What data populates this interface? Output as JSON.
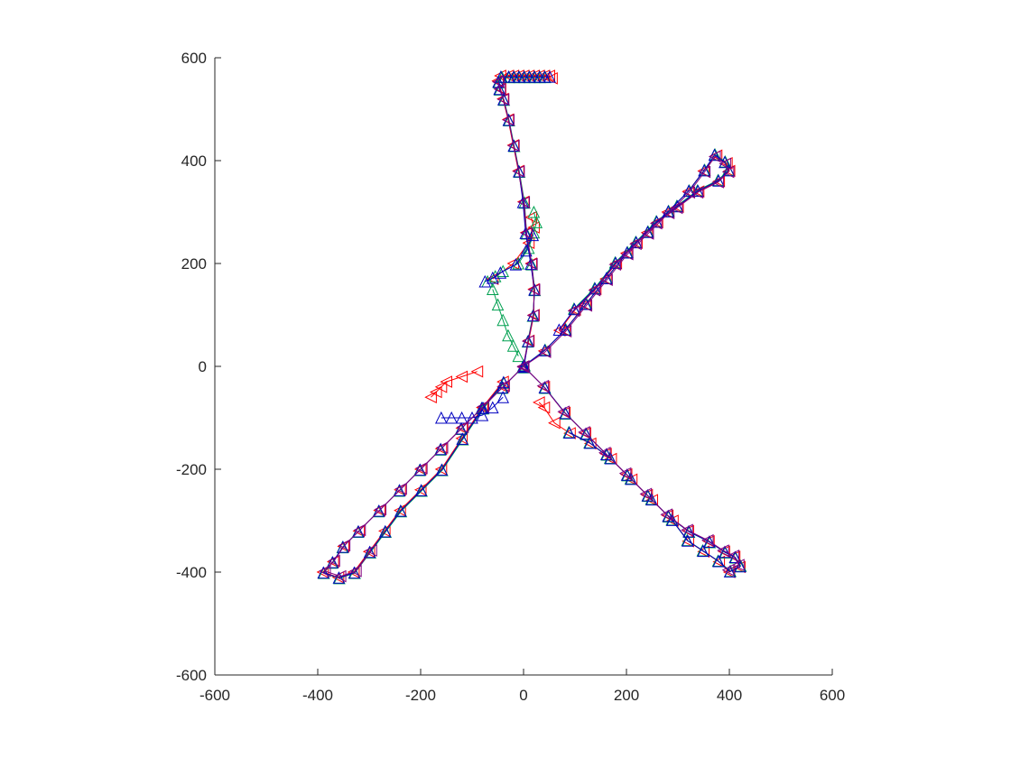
{
  "chart_data": {
    "type": "line",
    "title": "",
    "xlabel": "",
    "ylabel": "",
    "xlim": [
      -600,
      600
    ],
    "ylim": [
      -600,
      600
    ],
    "aspect": "equal",
    "grid": false,
    "box": false,
    "x_ticks": [
      -600,
      -400,
      -200,
      0,
      200,
      400,
      600
    ],
    "y_ticks": [
      -600,
      -400,
      -200,
      0,
      200,
      400,
      600
    ],
    "x_tick_labels": [
      "-600",
      "-400",
      "-200",
      "0",
      "200",
      "400",
      "600"
    ],
    "y_tick_labels": [
      "-600",
      "-400",
      "-200",
      "0",
      "200",
      "400",
      "600"
    ],
    "series": [
      {
        "color": "#ff0000",
        "marker": "triangle-left",
        "segments": [
          {
            "x": [
              0,
              10,
              20,
              20,
              15,
              5,
              0,
              -10,
              -20,
              -30,
              -40,
              -45,
              -50,
              -45,
              -30,
              -20,
              -10,
              0,
              10,
              20,
              30,
              40,
              50,
              55
            ],
            "y": [
              0,
              50,
              100,
              150,
              200,
              260,
              320,
              380,
              430,
              480,
              520,
              540,
              555,
              565,
              565,
              565,
              565,
              565,
              565,
              565,
              565,
              565,
              565,
              560
            ]
          },
          {
            "x": [
              -60,
              -20,
              10,
              20,
              15
            ],
            "y": [
              170,
              200,
              240,
              270,
              290
            ]
          },
          {
            "x": [
              0,
              40,
              80,
              120,
              160,
              200,
              240,
              280,
              320,
              350,
              375,
              395,
              400,
              380,
              340,
              300,
              260,
              220,
              180,
              140,
              100,
              70
            ],
            "y": [
              0,
              30,
              70,
              120,
              170,
              220,
              260,
              300,
              340,
              380,
              410,
              395,
              380,
              360,
              340,
              310,
              280,
              240,
              200,
              150,
              110,
              70
            ]
          },
          {
            "x": [
              0,
              40,
              80,
              120,
              160,
              200,
              240,
              280,
              320,
              360,
              390,
              410,
              420,
              400,
              380,
              350,
              320,
              290,
              250,
              210,
              170,
              130,
              90,
              60,
              40,
              30
            ],
            "y": [
              0,
              -40,
              -90,
              -130,
              -170,
              -210,
              -250,
              -290,
              -320,
              -340,
              -360,
              -370,
              -390,
              -400,
              -380,
              -360,
              -340,
              -300,
              -260,
              -220,
              -180,
              -150,
              -130,
              -110,
              -80,
              -70
            ]
          },
          {
            "x": [
              0,
              -40,
              -80,
              -120,
              -160,
              -200,
              -240,
              -280,
              -320,
              -350,
              -370,
              -390,
              -360,
              -330,
              -300,
              -270,
              -240,
              -200,
              -160,
              -120,
              -80,
              -40
            ],
            "y": [
              0,
              -40,
              -80,
              -120,
              -160,
              -200,
              -240,
              -280,
              -320,
              -350,
              -380,
              -400,
              -410,
              -400,
              -360,
              -320,
              -280,
              -240,
              -200,
              -140,
              -80,
              -30
            ]
          },
          {
            "x": [
              -180,
              -170,
              -160,
              -150,
              -120,
              -90
            ],
            "y": [
              -60,
              -50,
              -40,
              -30,
              -20,
              -10
            ]
          }
        ]
      },
      {
        "color": "#00a050",
        "marker": "triangle-up",
        "segments": [
          {
            "x": [
              0,
              8,
              18,
              22,
              16,
              6,
              2,
              -8,
              -18,
              -28,
              -38,
              -46,
              -48,
              -42,
              -28,
              -18,
              -8,
              2,
              12,
              22,
              32,
              42
            ],
            "y": [
              0,
              48,
              98,
              148,
              198,
              258,
              318,
              378,
              428,
              478,
              518,
              538,
              552,
              562,
              562,
              562,
              562,
              562,
              562,
              562,
              562,
              562
            ]
          },
          {
            "x": [
              -70,
              -55,
              -40,
              -10,
              10,
              20,
              25,
              20
            ],
            "y": [
              165,
              175,
              185,
              200,
              230,
              260,
              280,
              300
            ]
          },
          {
            "x": [
              -60,
              -50,
              -40,
              -30,
              -20,
              -10
            ],
            "y": [
              150,
              120,
              90,
              60,
              40,
              20
            ]
          },
          {
            "x": [
              2,
              42,
              82,
              122,
              162,
              202,
              242,
              282,
              322,
              352,
              372,
              392,
              398,
              378,
              338,
              298,
              258,
              218,
              178,
              138,
              98
            ],
            "y": [
              2,
              32,
              72,
              122,
              172,
              222,
              262,
              302,
              342,
              382,
              412,
              398,
              382,
              362,
              342,
              312,
              282,
              242,
              202,
              152,
              112
            ]
          },
          {
            "x": [
              2,
              42,
              82,
              122,
              162,
              202,
              242,
              282,
              322,
              362,
              392,
              412,
              422,
              402,
              378,
              348,
              318,
              288,
              248,
              208,
              168,
              128,
              88
            ],
            "y": [
              -2,
              -42,
              -92,
              -132,
              -172,
              -212,
              -252,
              -292,
              -322,
              -342,
              -362,
              -372,
              -388,
              -398,
              -378,
              -358,
              -338,
              -298,
              -258,
              -218,
              -178,
              -148,
              -128
            ]
          },
          {
            "x": [
              -2,
              -42,
              -82,
              -122,
              -162,
              -202,
              -242,
              -282,
              -322,
              -352,
              -372,
              -388,
              -358,
              -328,
              -298,
              -268,
              -238,
              -198,
              -158,
              -118,
              -78,
              -38
            ],
            "y": [
              -2,
              -42,
              -82,
              -122,
              -162,
              -202,
              -242,
              -282,
              -322,
              -352,
              -382,
              -402,
              -412,
              -402,
              -362,
              -322,
              -282,
              -242,
              -202,
              -142,
              -82,
              -32
            ]
          }
        ]
      },
      {
        "color": "#0000c0",
        "marker": "triangle-up",
        "segments": [
          {
            "x": [
              1,
              9,
              19,
              21,
              14,
              4,
              -1,
              -9,
              -19,
              -29,
              -39,
              -47,
              -49,
              -44,
              -29,
              -19,
              -9,
              1,
              11,
              21,
              31,
              41,
              51
            ],
            "y": [
              1,
              49,
              99,
              149,
              199,
              259,
              319,
              379,
              429,
              479,
              519,
              539,
              553,
              563,
              563,
              563,
              563,
              563,
              563,
              563,
              563,
              563,
              563
            ]
          },
          {
            "x": [
              -75,
              -60,
              -45,
              -15,
              5,
              18
            ],
            "y": [
              165,
              172,
              182,
              198,
              225,
              255
            ]
          },
          {
            "x": [
              1,
              41,
              81,
              121,
              161,
              201,
              241,
              281,
              321,
              351,
              371,
              391,
              399,
              379,
              339,
              299,
              259,
              219,
              179,
              139,
              99,
              69
            ],
            "y": [
              1,
              31,
              71,
              121,
              171,
              221,
              261,
              301,
              341,
              381,
              411,
              397,
              381,
              361,
              341,
              311,
              281,
              241,
              201,
              151,
              111,
              71
            ]
          },
          {
            "x": [
              1,
              41,
              81,
              121,
              161,
              201,
              241,
              281,
              321,
              361,
              391,
              411,
              421,
              401,
              379,
              349,
              319,
              289,
              249,
              209,
              169,
              129,
              89
            ],
            "y": [
              -1,
              -41,
              -91,
              -131,
              -171,
              -211,
              -251,
              -291,
              -321,
              -341,
              -361,
              -371,
              -389,
              -399,
              -379,
              -359,
              -339,
              -299,
              -259,
              -219,
              -179,
              -149,
              -129
            ]
          },
          {
            "x": [
              -1,
              -41,
              -81,
              -121,
              -161,
              -201,
              -241,
              -281,
              -321,
              -351,
              -371,
              -389,
              -359,
              -329,
              -299,
              -269,
              -239,
              -199,
              -159,
              -119,
              -79,
              -39
            ],
            "y": [
              -1,
              -41,
              -81,
              -121,
              -161,
              -201,
              -241,
              -281,
              -321,
              -351,
              -381,
              -401,
              -411,
              -401,
              -361,
              -321,
              -281,
              -241,
              -201,
              -141,
              -81,
              -31
            ]
          },
          {
            "x": [
              -160,
              -140,
              -120,
              -100,
              -80,
              -60,
              -40
            ],
            "y": [
              -100,
              -100,
              -100,
              -100,
              -95,
              -80,
              -60
            ]
          }
        ]
      },
      {
        "color": "#800080",
        "marker": "triangle-left",
        "segments": [
          {
            "x": [
              -1,
              9,
              19,
              21,
              16,
              6,
              1,
              -9,
              -19,
              -29,
              -39,
              -46,
              -49
            ],
            "y": [
              -1,
              49,
              99,
              149,
              199,
              259,
              319,
              379,
              429,
              479,
              519,
              539,
              553
            ]
          },
          {
            "x": [
              0,
              42,
              82,
              122,
              162,
              202,
              242,
              282,
              322,
              352,
              372,
              392,
              398,
              378,
              338,
              298,
              258,
              218,
              178,
              138,
              98
            ],
            "y": [
              0,
              28,
              68,
              118,
              168,
              218,
              258,
              298,
              338,
              378,
              408,
              394,
              378,
              358,
              338,
              308,
              278,
              238,
              198,
              148,
              108
            ]
          },
          {
            "x": [
              0,
              38,
              78,
              118,
              158,
              198,
              238,
              278,
              318,
              358,
              388,
              408,
              418,
              398
            ],
            "y": [
              0,
              -38,
              -88,
              -128,
              -168,
              -208,
              -248,
              -288,
              -318,
              -338,
              -358,
              -368,
              -386,
              -396
            ]
          },
          {
            "x": [
              0,
              -38,
              -78,
              -118,
              -158,
              -198,
              -238,
              -278,
              -318,
              -348,
              -368,
              -386,
              -356,
              -326,
              -296
            ],
            "y": [
              0,
              -38,
              -78,
              -118,
              -158,
              -198,
              -238,
              -278,
              -318,
              -348,
              -378,
              -398,
              -408,
              -398,
              -358
            ]
          }
        ]
      }
    ]
  }
}
